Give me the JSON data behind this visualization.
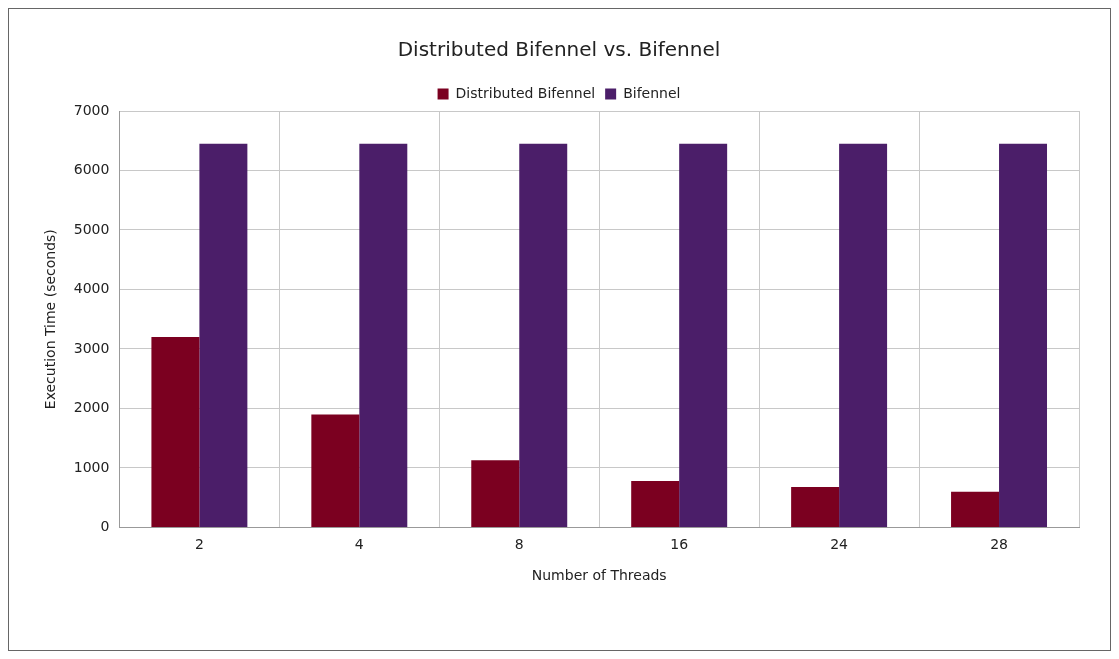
{
  "chart_data": {
    "type": "bar",
    "title": "Distributed Bifennel vs. Bifennel",
    "xlabel": "Number of Threads",
    "ylabel": "Execution Time (seconds)",
    "categories": [
      "2",
      "4",
      "8",
      "16",
      "24",
      "28"
    ],
    "series": [
      {
        "name": "Distributed Bifennel",
        "color": "#7b0020",
        "values": [
          3200,
          1900,
          1130,
          780,
          680,
          600
        ]
      },
      {
        "name": "Bifennel",
        "color": "#4b1e69",
        "values": [
          6450,
          6450,
          6450,
          6450,
          6450,
          6450
        ]
      }
    ],
    "ylim": [
      0,
      7000
    ],
    "yticks": [
      0,
      1000,
      2000,
      3000,
      4000,
      5000,
      6000,
      7000
    ],
    "grid": true,
    "legend": "top"
  }
}
